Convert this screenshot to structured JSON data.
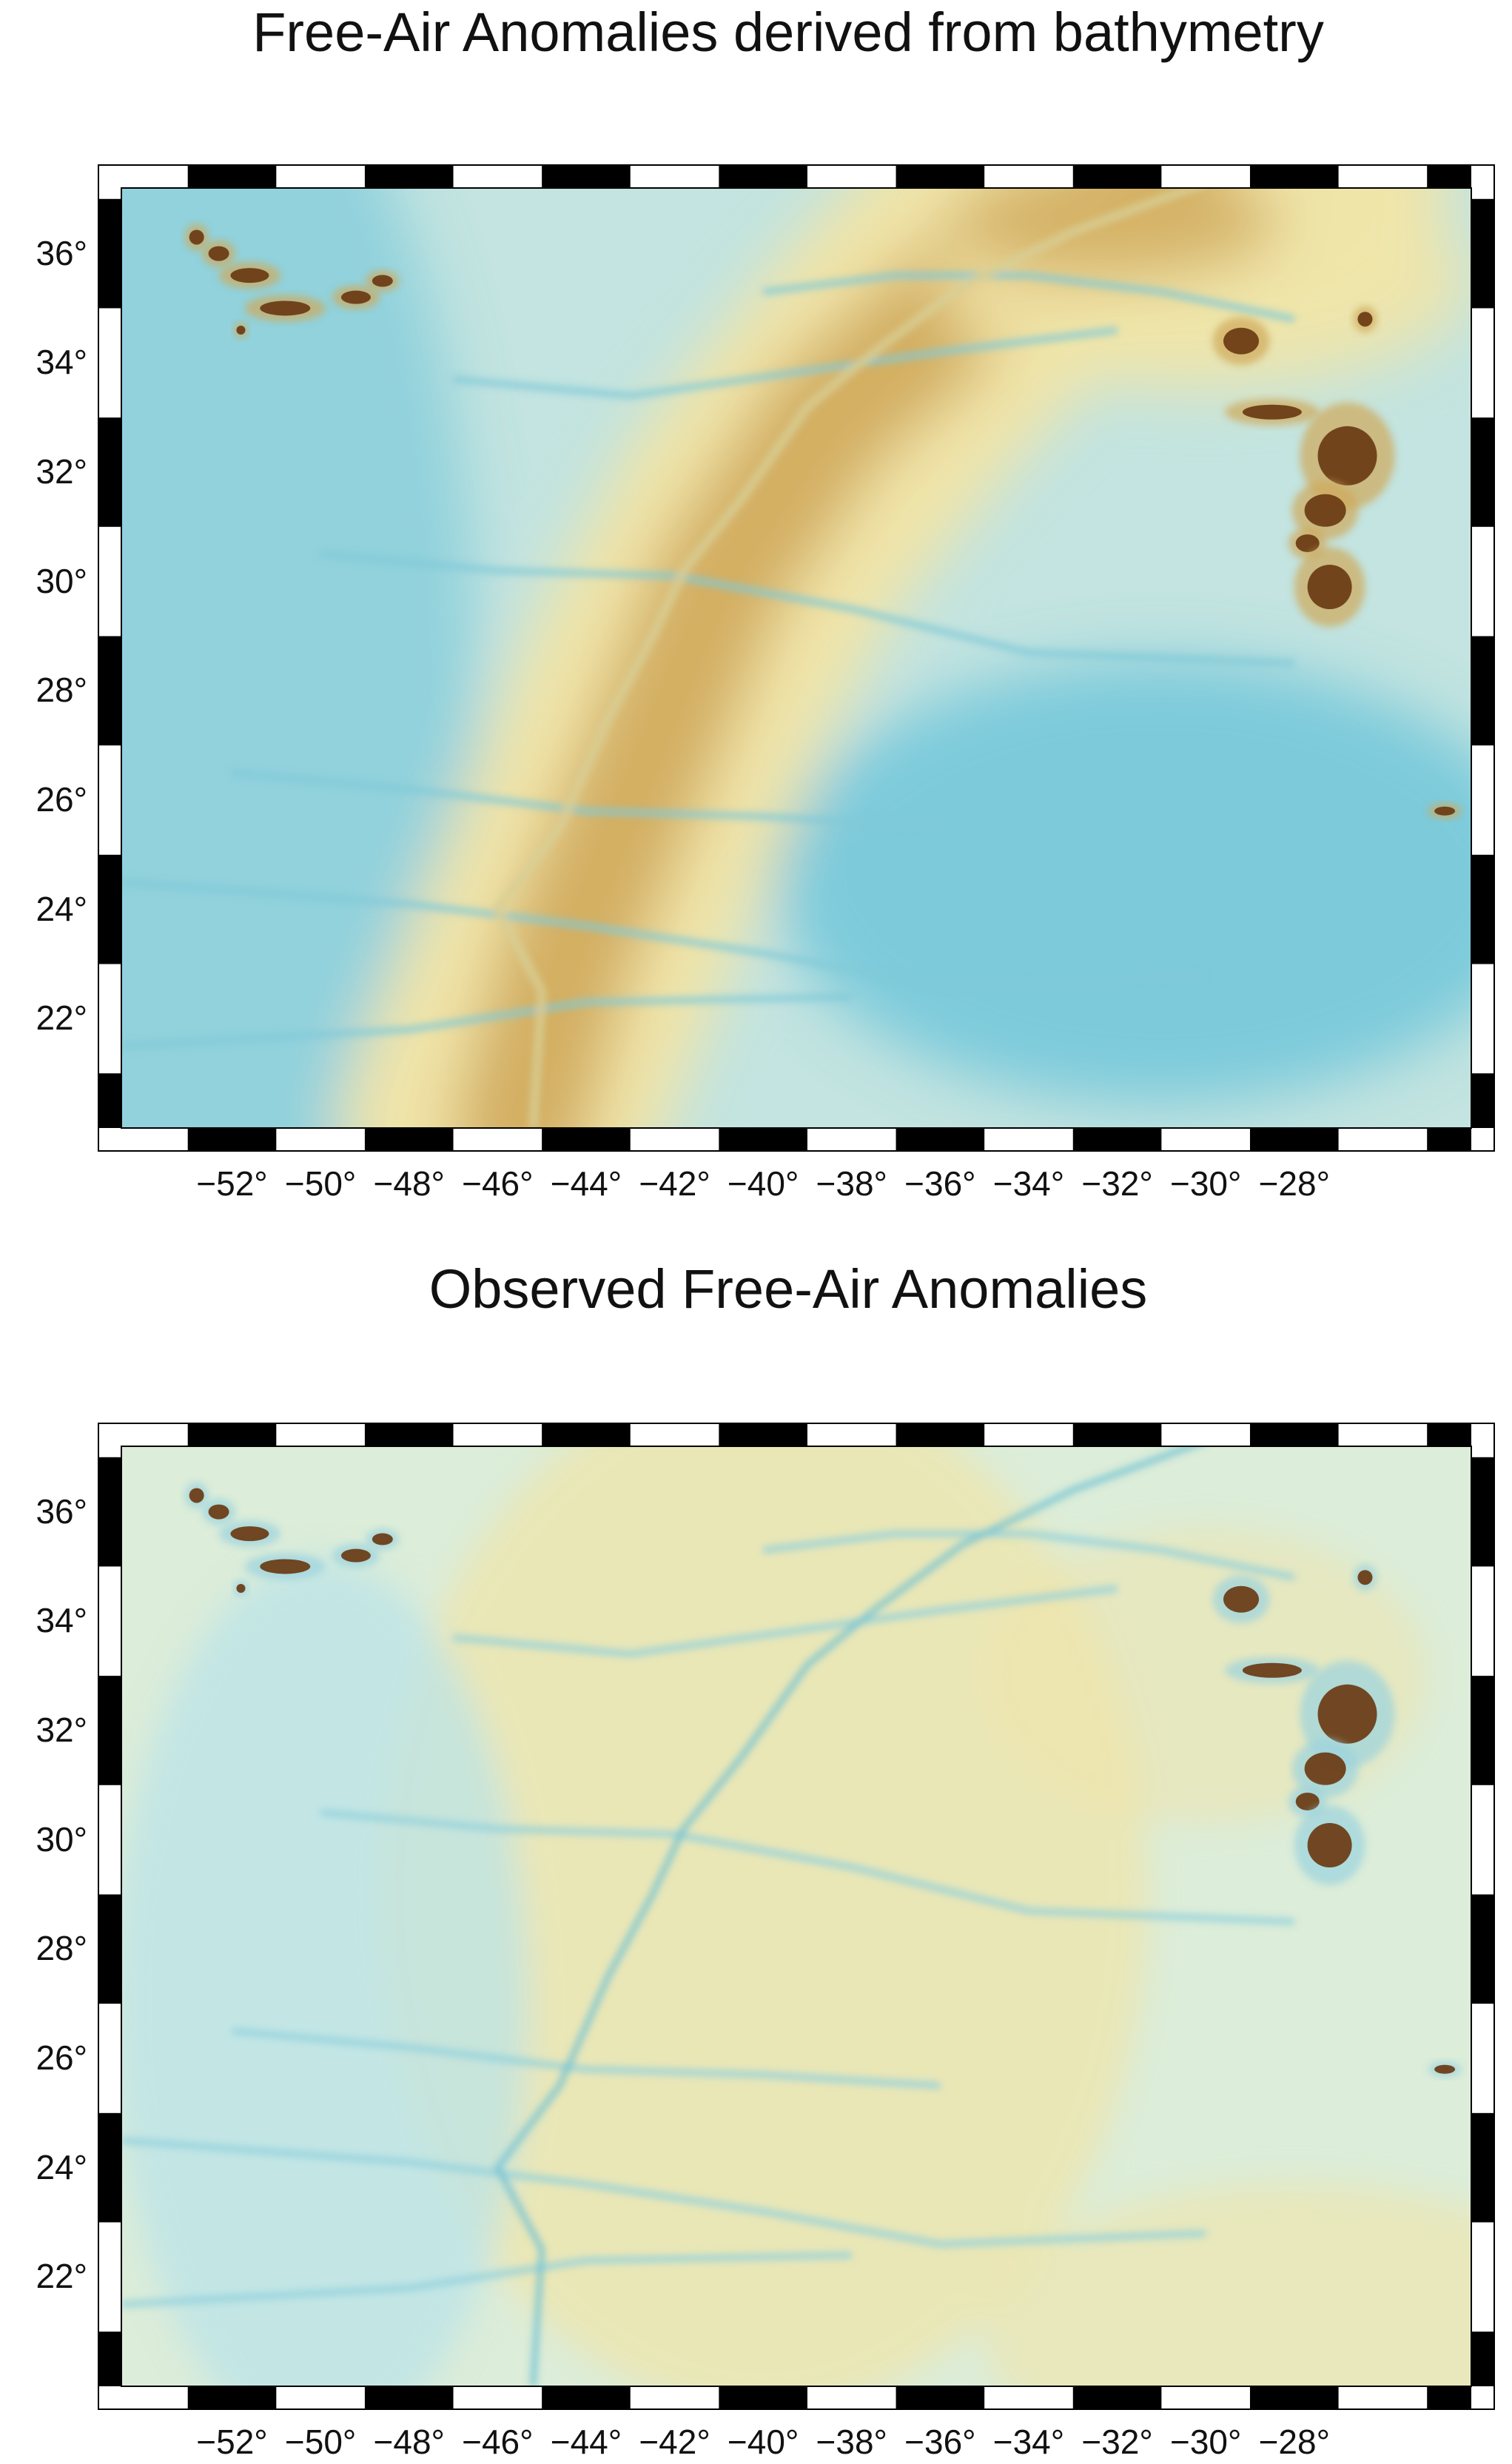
{
  "panels": [
    {
      "title": "Free-Air Anomalies derived from bathymetry",
      "kind": "bathymetry_derived"
    },
    {
      "title": "Observed Free-Air Anomalies",
      "kind": "observed"
    }
  ],
  "axes": {
    "longitude_ticks": [
      "−52°",
      "−50°",
      "−48°",
      "−46°",
      "−44°",
      "−42°",
      "−40°",
      "−38°",
      "−36°",
      "−34°",
      "−32°",
      "−30°",
      "−28°"
    ],
    "latitude_ticks": [
      "36°",
      "34°",
      "32°",
      "30°",
      "28°",
      "26°",
      "24°",
      "22°"
    ],
    "lon_range": [
      -54.5,
      -24.0
    ],
    "lat_range": [
      20.0,
      37.2
    ]
  },
  "colors": {
    "low": "#66c2d9",
    "mid_low": "#b8e3ea",
    "mid_high": "#f0e4a8",
    "high": "#cfa95a",
    "peak": "#6a3a12"
  }
}
